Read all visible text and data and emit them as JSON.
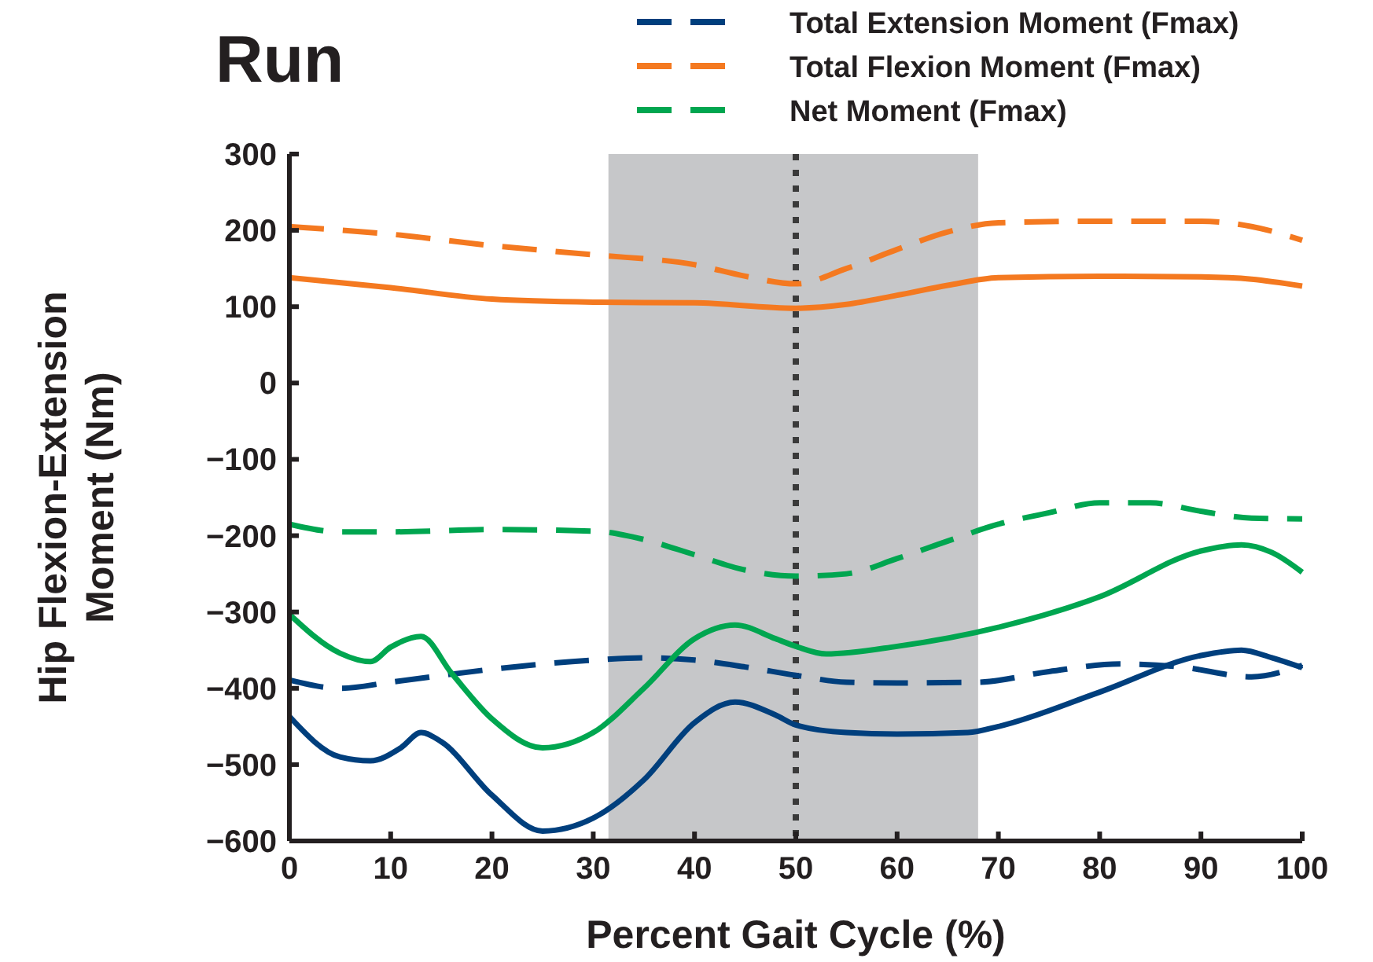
{
  "chart_data": {
    "type": "line",
    "title": "Run",
    "xlabel": "Percent Gait Cycle (%)",
    "ylabel": "Hip Flexion-Extension Moment (Nm)",
    "xlim": [
      0,
      100
    ],
    "xticks": [
      0,
      10,
      20,
      30,
      40,
      50,
      60,
      70,
      80,
      90,
      100
    ],
    "ylim": [
      -600,
      300
    ],
    "yticks": [
      -600,
      -500,
      -400,
      -300,
      -200,
      -100,
      0,
      100,
      200,
      300
    ],
    "grid": false,
    "legend": "top right",
    "marker": "none",
    "bands": [
      {
        "axis": "x",
        "from": 31.5,
        "to": 68,
        "color": "#c6c7c9"
      }
    ],
    "ref_lines": [
      {
        "axis": "x",
        "value": 50,
        "color": "#3a3a3a",
        "line_style": "dotted"
      }
    ],
    "series": [
      {
        "name": "Total Extension Moment (Fmax)",
        "color": "#003f7d",
        "line_style": "dashed",
        "x": [
          0,
          5,
          10,
          20,
          30,
          35,
          40,
          45,
          50,
          55,
          60,
          68,
          75,
          82,
          88,
          95,
          100
        ],
        "values": [
          -389,
          -400,
          -392,
          -375,
          -363,
          -360,
          -363,
          -372,
          -383,
          -392,
          -393,
          -392,
          -378,
          -368,
          -372,
          -385,
          -370
        ]
      },
      {
        "name": "Total Flexion Moment (Fmax)",
        "color": "#f47920",
        "line_style": "dashed",
        "x": [
          0,
          10,
          20,
          30,
          40,
          45,
          50,
          55,
          60,
          65,
          70,
          80,
          90,
          95,
          100
        ],
        "values": [
          205,
          195,
          180,
          168,
          155,
          140,
          130,
          150,
          175,
          198,
          210,
          212,
          212,
          205,
          187
        ]
      },
      {
        "name": "Net Moment (Fmax)",
        "color": "#00a650",
        "line_style": "dashed",
        "x": [
          0,
          5,
          10,
          20,
          30,
          35,
          40,
          45,
          50,
          55,
          60,
          65,
          70,
          75,
          80,
          85,
          90,
          95,
          100
        ],
        "values": [
          -185,
          -195,
          -195,
          -192,
          -194,
          -205,
          -225,
          -245,
          -253,
          -250,
          -230,
          -207,
          -185,
          -170,
          -157,
          -157,
          -168,
          -177,
          -178
        ]
      },
      {
        "color": "#f47920",
        "line_style": "solid",
        "x": [
          0,
          10,
          20,
          30,
          40,
          50,
          55,
          60,
          65,
          70,
          80,
          90,
          95,
          100
        ],
        "values": [
          138,
          125,
          110,
          106,
          105,
          98,
          103,
          115,
          128,
          138,
          140,
          139,
          136,
          127
        ]
      },
      {
        "color": "#00a650",
        "line_style": "solid",
        "x": [
          0,
          5,
          8,
          10,
          13,
          16,
          20,
          25,
          30,
          35,
          40,
          44,
          48,
          50,
          53,
          60,
          70,
          80,
          90,
          94,
          97,
          100
        ],
        "values": [
          -303,
          -354,
          -365,
          -346,
          -332,
          -380,
          -440,
          -478,
          -458,
          -400,
          -335,
          -317,
          -335,
          -345,
          -355,
          -345,
          -320,
          -280,
          -220,
          -212,
          -222,
          -248
        ]
      },
      {
        "color": "#003f7d",
        "line_style": "solid",
        "x": [
          0,
          5,
          8,
          11,
          13,
          15,
          20,
          25,
          30,
          35,
          40,
          44,
          48,
          50,
          55,
          60,
          67,
          70,
          80,
          90,
          94,
          97,
          100
        ],
        "values": [
          -437,
          -490,
          -495,
          -478,
          -458,
          -470,
          -540,
          -587,
          -570,
          -520,
          -445,
          -418,
          -435,
          -448,
          -458,
          -460,
          -458,
          -450,
          -405,
          -357,
          -350,
          -360,
          -373
        ]
      }
    ]
  }
}
